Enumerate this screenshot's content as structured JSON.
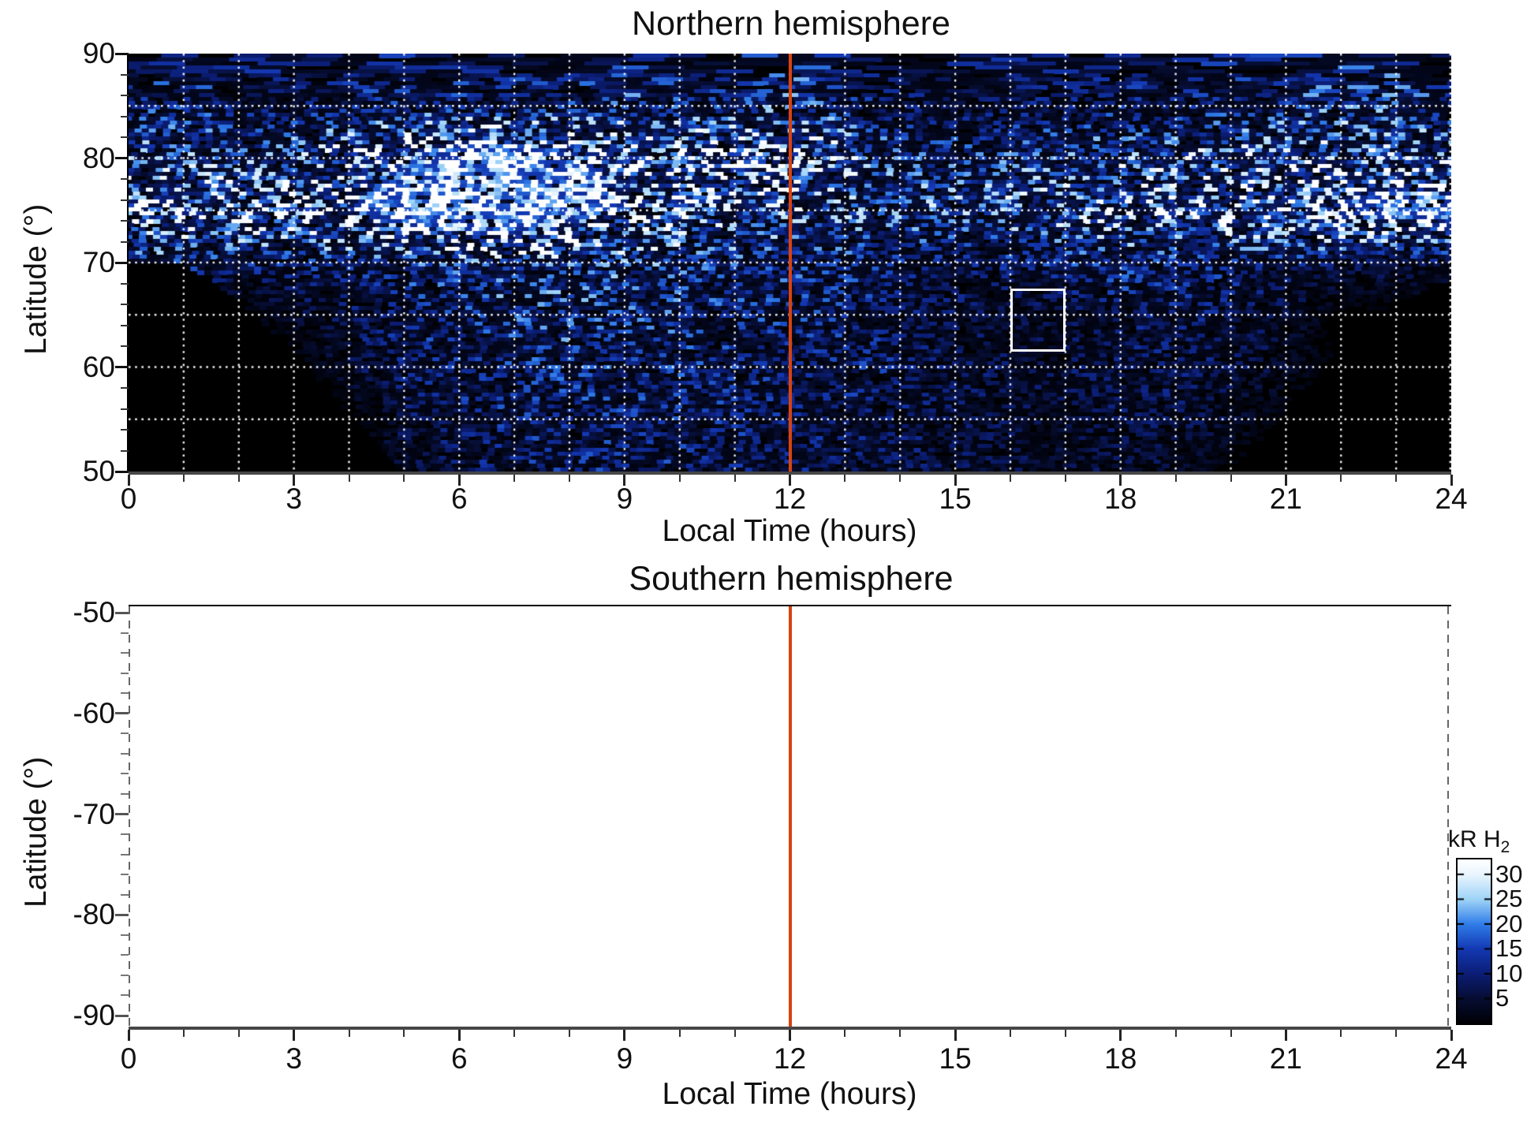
{
  "figure": {
    "background": "#ffffff",
    "accent_red": "#d9420e",
    "grid_color": "#ffffff"
  },
  "north": {
    "title": "Northern hemisphere",
    "xlabel": "Local Time (hours)",
    "ylabel": "Latitude (°)",
    "x_tick_labels": [
      "0",
      "3",
      "6",
      "9",
      "12",
      "15",
      "18",
      "21",
      "24"
    ],
    "y_tick_labels": [
      "90",
      "80",
      "70",
      "60",
      "50"
    ]
  },
  "south": {
    "title": "Southern hemisphere",
    "xlabel": "Local Time (hours)",
    "ylabel": "Latitude (°)",
    "x_tick_labels": [
      "0",
      "3",
      "6",
      "9",
      "12",
      "15",
      "18",
      "21",
      "24"
    ],
    "y_tick_labels": [
      "-50",
      "-60",
      "-70",
      "-80",
      "-90"
    ]
  },
  "colorbar": {
    "label": "kR H",
    "label_subscript": "2",
    "tick_labels": [
      "30",
      "25",
      "20",
      "15",
      "10",
      "5"
    ],
    "tick_values": [
      30,
      25,
      20,
      15,
      10,
      5
    ],
    "range": [
      0,
      33
    ],
    "stops": [
      [
        0,
        "#000004"
      ],
      [
        5,
        "#060d32"
      ],
      [
        10,
        "#0b1d74"
      ],
      [
        15,
        "#1338b2"
      ],
      [
        20,
        "#2f7ce8"
      ],
      [
        25,
        "#9ed3f7"
      ],
      [
        30,
        "#e9f5fe"
      ],
      [
        33,
        "#ffffff"
      ]
    ]
  },
  "chart_data": [
    {
      "type": "heatmap",
      "title": "Northern hemisphere",
      "xlabel": "Local Time (hours)",
      "ylabel": "Latitude (°)",
      "unit": "kR H2",
      "xlim": [
        0,
        24
      ],
      "ylim": [
        50,
        90
      ],
      "x_major_ticks": [
        0,
        3,
        6,
        9,
        12,
        15,
        18,
        21,
        24
      ],
      "x_minor_step": 1,
      "y_major_ticks": [
        90,
        80,
        70,
        60,
        50
      ],
      "y_minor_step": 2,
      "grid": {
        "x_step_hours": 1,
        "y_step_deg": 5,
        "style": "dotted",
        "color": "#ffffff"
      },
      "hours": [
        0,
        1,
        2,
        3,
        4,
        5,
        6,
        7,
        8,
        9,
        10,
        11,
        12,
        13,
        14,
        15,
        16,
        17,
        18,
        19,
        20,
        21,
        22,
        23,
        24
      ],
      "lats": [
        90,
        85,
        80,
        75,
        70,
        65,
        60,
        55,
        50
      ],
      "values_kR": [
        [
          7,
          8,
          6,
          9,
          7,
          8,
          10,
          9,
          7,
          8,
          9,
          12,
          10,
          8,
          7,
          6,
          8,
          7,
          9,
          8,
          7,
          8,
          9,
          10,
          8
        ],
        [
          8,
          10,
          7,
          6,
          8,
          9,
          8,
          7,
          9,
          11,
          10,
          9,
          12,
          8,
          6,
          5,
          6,
          7,
          8,
          7,
          8,
          10,
          12,
          11,
          9
        ],
        [
          14,
          13,
          12,
          14,
          18,
          24,
          28,
          30,
          26,
          22,
          20,
          22,
          24,
          16,
          11,
          10,
          11,
          12,
          14,
          15,
          15,
          16,
          15,
          16,
          15
        ],
        [
          24,
          22,
          20,
          20,
          24,
          30,
          32,
          31,
          28,
          24,
          20,
          16,
          14,
          13,
          13,
          14,
          15,
          16,
          17,
          18,
          19,
          22,
          26,
          28,
          27
        ],
        [
          10,
          9,
          8,
          8,
          9,
          10,
          12,
          13,
          12,
          12,
          11,
          10,
          10,
          9,
          8,
          7,
          8,
          9,
          10,
          9,
          8,
          7,
          6,
          5,
          5
        ],
        [
          0,
          0,
          0,
          3,
          6,
          8,
          9,
          10,
          11,
          10,
          10,
          9,
          9,
          8,
          7,
          5,
          4,
          4,
          6,
          7,
          6,
          4,
          0,
          0,
          0
        ],
        [
          0,
          0,
          0,
          0,
          4,
          7,
          8,
          9,
          10,
          9,
          9,
          8,
          8,
          8,
          7,
          6,
          5,
          5,
          6,
          6,
          5,
          3,
          0,
          0,
          0
        ],
        [
          0,
          0,
          0,
          0,
          0,
          5,
          7,
          8,
          8,
          8,
          8,
          8,
          7,
          7,
          6,
          5,
          5,
          4,
          5,
          5,
          4,
          0,
          0,
          0,
          0
        ],
        [
          0,
          0,
          0,
          0,
          0,
          4,
          6,
          7,
          8,
          8,
          8,
          7,
          7,
          6,
          6,
          5,
          4,
          4,
          4,
          4,
          0,
          0,
          0,
          0,
          0
        ]
      ],
      "no_data_below_lat_by_hour": [
        70,
        70,
        66.5,
        61.5,
        55.5,
        50,
        50,
        50,
        50,
        50,
        50,
        50,
        50,
        50,
        50,
        50,
        50,
        50,
        50,
        50,
        50,
        56,
        62,
        66,
        68.5
      ],
      "annotations": {
        "noon_line": {
          "x": 12,
          "color": "#d9420e"
        },
        "highlight_box": {
          "hour_min": 16,
          "hour_max": 17,
          "lat_min": 61.5,
          "lat_max": 67.5,
          "color": "#ffffff"
        }
      }
    },
    {
      "type": "heatmap",
      "title": "Southern hemisphere",
      "xlabel": "Local Time (hours)",
      "ylabel": "Latitude (°)",
      "unit": "kR H2",
      "xlim": [
        0,
        24
      ],
      "ylim": [
        -90,
        -50
      ],
      "x_major_ticks": [
        0,
        3,
        6,
        9,
        12,
        15,
        18,
        21,
        24
      ],
      "x_minor_step": 1,
      "y_major_ticks": [
        -50,
        -60,
        -70,
        -80,
        -90
      ],
      "y_minor_step": 2,
      "no_data": true,
      "annotations": {
        "noon_line": {
          "x": 12,
          "color": "#d9420e"
        }
      }
    }
  ]
}
